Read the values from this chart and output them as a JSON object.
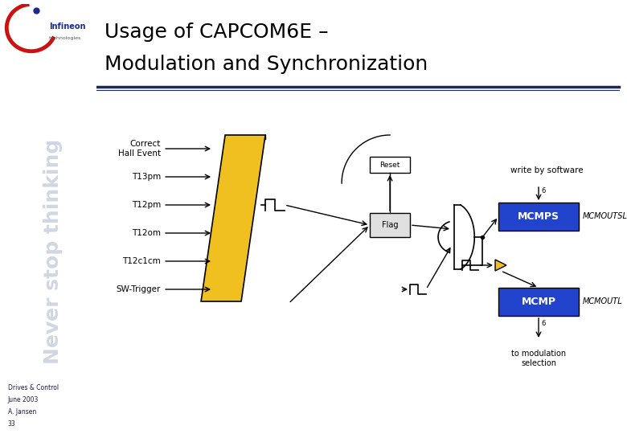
{
  "title_line1": "Usage of CAPCOM6E –",
  "title_line2": "Modulation and Synchronization",
  "sidebar_bg": "#b8c4d8",
  "sidebar_text": "Never stop thinking",
  "sidebar_info": [
    "Drives & Control",
    "June 2003",
    "A. Jansen",
    "33"
  ],
  "main_bg": "#ffffff",
  "header_line_color": "#1a2a5e",
  "title_color": "#000000",
  "input_labels": [
    "Correct\nHall Event",
    "T13pm",
    "T12pm",
    "T12om",
    "T12c1cm",
    "SW-Trigger"
  ],
  "yellow_block_color": "#f0c020",
  "blue_block_color": "#2244cc",
  "blue_block_text_color": "#ffffff",
  "flag_box_color": "#d0d0d0",
  "flag_box_border": "#000000",
  "mcmps_label": "MCMPS",
  "mcmp_label": "MCMP",
  "mcmoutsl_label": "MCMOUTSL",
  "mcmoutl_label": "MCMOUTL",
  "write_by_software": "write by software",
  "to_modulation": "to modulation\nselection",
  "reset_label": "Reset",
  "flag_label": "Flag"
}
